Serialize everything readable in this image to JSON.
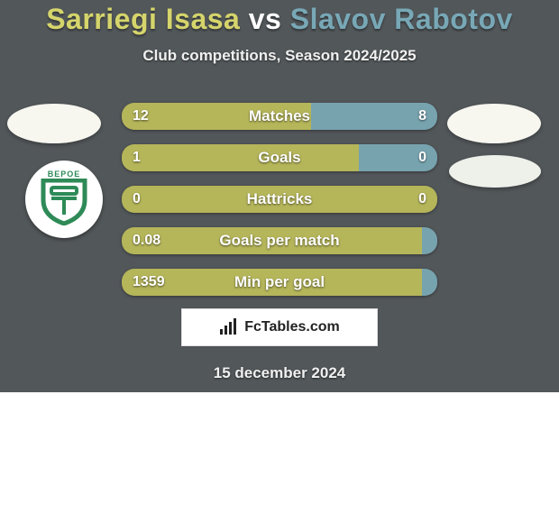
{
  "title": {
    "player1": "Sarriegi Isasa",
    "vs": "vs",
    "player2": "Slavov Rabotov",
    "player1_color": "#d5d56c",
    "player2_color": "#78a8b6",
    "vs_color": "#ffffff"
  },
  "subtitle": "Club competitions, Season 2024/2025",
  "background_color": "#52575a",
  "stat_rows": [
    {
      "label": "Matches",
      "left_val": "12",
      "right_val": "8",
      "left_pct": 60,
      "left_color": "#b5b55a",
      "right_color": "#77a3af"
    },
    {
      "label": "Goals",
      "left_val": "1",
      "right_val": "0",
      "left_pct": 75,
      "left_color": "#b5b55a",
      "right_color": "#77a3af"
    },
    {
      "label": "Hattricks",
      "left_val": "0",
      "right_val": "0",
      "left_pct": 100,
      "left_color": "#b5b55a",
      "right_color": "#77a3af"
    },
    {
      "label": "Goals per match",
      "left_val": "0.08",
      "right_val": "",
      "left_pct": 95,
      "left_color": "#b5b55a",
      "right_color": "#77a3af"
    },
    {
      "label": "Min per goal",
      "left_val": "1359",
      "right_val": "",
      "left_pct": 95,
      "left_color": "#b5b55a",
      "right_color": "#77a3af"
    }
  ],
  "logos": {
    "left_fill": "#f7f7f0",
    "right_fill": "#f7f7f0",
    "right2_fill": "#eef0ea"
  },
  "badge": {
    "text": "BEPOE",
    "text_color": "#2e8a57",
    "shield_color": "#2e8a57"
  },
  "attribution": {
    "text": "FcTables.com",
    "text_color": "#222222",
    "bg_color": "#ffffff"
  },
  "date_line": "15 december 2024"
}
